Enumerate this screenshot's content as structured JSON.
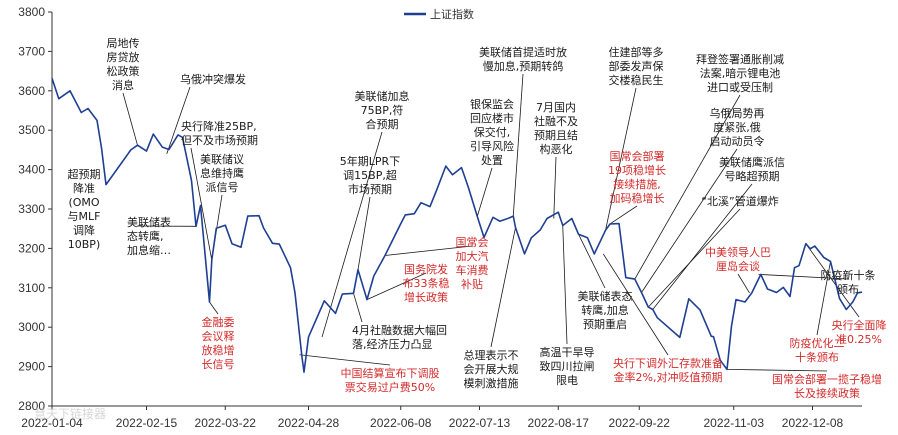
{
  "chart_data": {
    "type": "line",
    "title": "",
    "legend": {
      "entries": [
        "上证指数"
      ],
      "placement": "top-center"
    },
    "series": [
      {
        "name": "上证指数",
        "color": "#1f3f93",
        "points": [
          [
            "2022-01-04",
            3632
          ],
          [
            "2022-01-07",
            3580
          ],
          [
            "2022-01-12",
            3600
          ],
          [
            "2022-01-17",
            3545
          ],
          [
            "2022-01-20",
            3555
          ],
          [
            "2022-01-24",
            3525
          ],
          [
            "2022-01-26",
            3455
          ],
          [
            "2022-01-28",
            3362
          ],
          [
            "2022-02-08",
            3450
          ],
          [
            "2022-02-11",
            3462
          ],
          [
            "2022-02-15",
            3447
          ],
          [
            "2022-02-18",
            3490
          ],
          [
            "2022-02-22",
            3457
          ],
          [
            "2022-02-25",
            3451
          ],
          [
            "2022-03-01",
            3488
          ],
          [
            "2022-03-03",
            3482
          ],
          [
            "2022-03-07",
            3372
          ],
          [
            "2022-03-09",
            3256
          ],
          [
            "2022-03-11",
            3309
          ],
          [
            "2022-03-15",
            3064
          ],
          [
            "2022-03-16",
            3171
          ],
          [
            "2022-03-18",
            3251
          ],
          [
            "2022-03-22",
            3259
          ],
          [
            "2022-03-25",
            3212
          ],
          [
            "2022-03-29",
            3203
          ],
          [
            "2022-04-01",
            3282
          ],
          [
            "2022-04-06",
            3283
          ],
          [
            "2022-04-08",
            3252
          ],
          [
            "2022-04-12",
            3213
          ],
          [
            "2022-04-15",
            3211
          ],
          [
            "2022-04-20",
            3151
          ],
          [
            "2022-04-22",
            3087
          ],
          [
            "2022-04-25",
            2928
          ],
          [
            "2022-04-26",
            2886
          ],
          [
            "2022-04-28",
            2975
          ],
          [
            "2022-05-05",
            3067
          ],
          [
            "2022-05-10",
            3035
          ],
          [
            "2022-05-13",
            3084
          ],
          [
            "2022-05-18",
            3086
          ],
          [
            "2022-05-20",
            3146
          ],
          [
            "2022-05-24",
            3070
          ],
          [
            "2022-05-27",
            3130
          ],
          [
            "2022-06-01",
            3182
          ],
          [
            "2022-06-08",
            3263
          ],
          [
            "2022-06-10",
            3285
          ],
          [
            "2022-06-14",
            3288
          ],
          [
            "2022-06-17",
            3316
          ],
          [
            "2022-06-21",
            3306
          ],
          [
            "2022-06-24",
            3349
          ],
          [
            "2022-06-28",
            3409
          ],
          [
            "2022-07-01",
            3387
          ],
          [
            "2022-07-05",
            3405
          ],
          [
            "2022-07-08",
            3356
          ],
          [
            "2022-07-12",
            3281
          ],
          [
            "2022-07-15",
            3228
          ],
          [
            "2022-07-19",
            3279
          ],
          [
            "2022-07-22",
            3269
          ],
          [
            "2022-07-26",
            3277
          ],
          [
            "2022-07-28",
            3282
          ],
          [
            "2022-07-29",
            3253
          ],
          [
            "2022-08-02",
            3186
          ],
          [
            "2022-08-05",
            3227
          ],
          [
            "2022-08-09",
            3247
          ],
          [
            "2022-08-12",
            3276
          ],
          [
            "2022-08-17",
            3292
          ],
          [
            "2022-08-19",
            3258
          ],
          [
            "2022-08-23",
            3276
          ],
          [
            "2022-08-26",
            3236
          ],
          [
            "2022-08-30",
            3227
          ],
          [
            "2022-09-02",
            3186
          ],
          [
            "2022-09-07",
            3246
          ],
          [
            "2022-09-09",
            3262
          ],
          [
            "2022-09-13",
            3263
          ],
          [
            "2022-09-16",
            3126
          ],
          [
            "2022-09-20",
            3122
          ],
          [
            "2022-09-23",
            3088
          ],
          [
            "2022-09-26",
            3051
          ],
          [
            "2022-09-28",
            3045
          ],
          [
            "2022-09-30",
            3024
          ],
          [
            "2022-10-10",
            2974
          ],
          [
            "2022-10-14",
            3072
          ],
          [
            "2022-10-19",
            3044
          ],
          [
            "2022-10-24",
            2977
          ],
          [
            "2022-10-25",
            2976
          ],
          [
            "2022-10-28",
            2916
          ],
          [
            "2022-10-31",
            2893
          ],
          [
            "2022-11-02",
            3003
          ],
          [
            "2022-11-04",
            3070
          ],
          [
            "2022-11-08",
            3064
          ],
          [
            "2022-11-11",
            3087
          ],
          [
            "2022-11-15",
            3134
          ],
          [
            "2022-11-18",
            3097
          ],
          [
            "2022-11-22",
            3088
          ],
          [
            "2022-11-25",
            3101
          ],
          [
            "2022-11-28",
            3078
          ],
          [
            "2022-11-30",
            3151
          ],
          [
            "2022-12-02",
            3156
          ],
          [
            "2022-12-05",
            3212
          ],
          [
            "2022-12-07",
            3199
          ],
          [
            "2022-12-09",
            3206
          ],
          [
            "2022-12-13",
            3177
          ],
          [
            "2022-12-16",
            3167
          ],
          [
            "2022-12-20",
            3073
          ],
          [
            "2022-12-23",
            3045
          ],
          [
            "2022-12-26",
            3065
          ],
          [
            "2022-12-28",
            3087
          ],
          [
            "2022-12-30",
            3089
          ]
        ]
      }
    ],
    "xaxis": {
      "type": "date",
      "ticks": [
        "2022-01-04",
        "2022-02-15",
        "2022-03-22",
        "2022-04-28",
        "2022-06-08",
        "2022-07-13",
        "2022-08-17",
        "2022-09-22",
        "2022-11-03",
        "2022-12-08"
      ]
    },
    "yaxis": {
      "range": [
        2800,
        3800
      ],
      "ticks": [
        2800,
        2900,
        3000,
        3100,
        3200,
        3300,
        3400,
        3500,
        3600,
        3700,
        3800
      ]
    },
    "grid": false,
    "annotations": [
      {
        "text": [
          "超预期",
          "降准",
          "(OMO",
          "与MLF",
          "调降",
          "10BP)"
        ],
        "color": "#1a1a1a"
      },
      {
        "text": [
          "局地传",
          "房贷放",
          "松政策",
          "消息"
        ],
        "color": "#1a1a1a"
      },
      {
        "text": [
          "乌俄冲突爆发"
        ],
        "color": "#1a1a1a"
      },
      {
        "text": [
          "美联储表",
          "态转鹰,",
          "加息缩…"
        ],
        "color": "#1a1a1a"
      },
      {
        "text": [
          "央行降准25BP,",
          "但不及市场预期"
        ],
        "color": "#1a1a1a"
      },
      {
        "text": [
          "美联储议",
          "息维持鹰",
          "派信号"
        ],
        "color": "#1a1a1a"
      },
      {
        "text": [
          "金融委",
          "会议释",
          "放稳增",
          "长信号"
        ],
        "color": "#d42a2a"
      },
      {
        "text": [
          "美联储加息",
          "75BP,符",
          "合预期"
        ],
        "color": "#1a1a1a"
      },
      {
        "text": [
          "5年期LPR下",
          "调15BP,超",
          "市场预期"
        ],
        "color": "#1a1a1a"
      },
      {
        "text": [
          "国务院发",
          "布33条稳",
          "增长政策"
        ],
        "color": "#d42a2a"
      },
      {
        "text": [
          "4月社融数据大幅回",
          "落,经济压力凸显"
        ],
        "color": "#1a1a1a"
      },
      {
        "text": [
          "中国结算宣布下调股",
          "票交易过户费50%"
        ],
        "color": "#d42a2a"
      },
      {
        "text": [
          "美联储首提适时放",
          "慢加息,预期转鸽"
        ],
        "color": "#1a1a1a"
      },
      {
        "text": [
          "银保监会",
          "回应楼市",
          "保交付,",
          "引导风险",
          "处置"
        ],
        "color": "#1a1a1a"
      },
      {
        "text": [
          "国常会",
          "加大汽",
          "车消费",
          "补贴"
        ],
        "color": "#d42a2a"
      },
      {
        "text": [
          "总理表示不",
          "会开展大规",
          "模刺激措施"
        ],
        "color": "#1a1a1a"
      },
      {
        "text": [
          "7月国内",
          "社融不及",
          "预期且结",
          "构恶化"
        ],
        "color": "#1a1a1a"
      },
      {
        "text": [
          "高温干旱导",
          "致四川拉闸",
          "限电"
        ],
        "color": "#1a1a1a"
      },
      {
        "text": [
          "美联储表态",
          "转鹰,加息",
          "预期重启"
        ],
        "color": "#1a1a1a"
      },
      {
        "text": [
          "住建部等多",
          "部委发声保",
          "交楼稳民生"
        ],
        "color": "#1a1a1a"
      },
      {
        "text": [
          "国常会部署",
          "19项稳增长",
          "接续措施,",
          "加码稳增长"
        ],
        "color": "#d42a2a"
      },
      {
        "text": [
          "央行下调外汇存款准备",
          "金率2%,对冲贬值预期"
        ],
        "color": "#d42a2a"
      },
      {
        "text": [
          "拜登签署通胀削减",
          "法案,暗示锂电池",
          "进口或受压制"
        ],
        "color": "#1a1a1a"
      },
      {
        "text": [
          "乌俄局势再",
          "度紧张,俄",
          "启动动员令"
        ],
        "color": "#1a1a1a"
      },
      {
        "text": [
          "美联储鹰派信",
          "号略超预期"
        ],
        "color": "#1a1a1a"
      },
      {
        "text": [
          "“北溪”管道爆炸"
        ],
        "color": "#1a1a1a"
      },
      {
        "text": [
          "中美领导人巴",
          "厘岛会谈"
        ],
        "color": "#d42a2a"
      },
      {
        "text": [
          "防疫新十条",
          "颁布"
        ],
        "color": "#1a1a1a"
      },
      {
        "text": [
          "央行全面降",
          "准0.25%"
        ],
        "color": "#d42a2a"
      },
      {
        "text": [
          "防疫优化二",
          "十条颁布"
        ],
        "color": "#d42a2a"
      },
      {
        "text": [
          "国常会部署一揽子稳增",
          "长及接续政策"
        ],
        "color": "#d42a2a"
      }
    ]
  },
  "watermark": "慧天下链接器"
}
